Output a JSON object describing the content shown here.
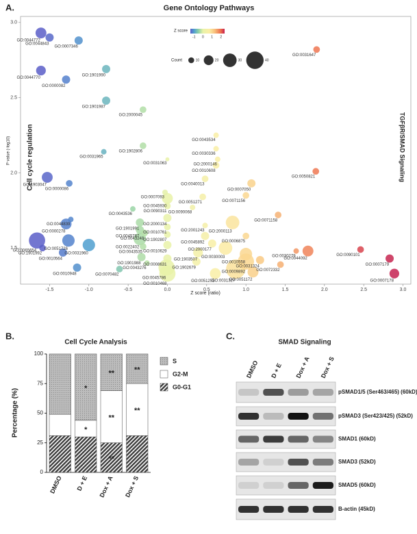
{
  "panels": {
    "a": "A.",
    "b": "B.",
    "c": "C."
  },
  "chart_data": [
    {
      "type": "bubble",
      "title": "Gene Ontology Pathways",
      "x_label": "Z score (ratio)",
      "y_label": "P value (-log10)",
      "annotations": [
        "Cell cycle regulation",
        "TGFβR/SMAD Signaling"
      ],
      "xlim": [
        -1.87,
        3.1
      ],
      "ylim": [
        1.26,
        3.04
      ],
      "xticks": [
        -1.5,
        -1.0,
        -0.5,
        0.0,
        0.5,
        1.0,
        1.5,
        2.0,
        2.5,
        3.0
      ],
      "yticks": [
        1.5,
        2.0,
        2.5,
        3.0
      ],
      "xtick_labels": [
        "-1.5",
        "-1.0",
        "-0.5",
        "0.0",
        "0.5",
        "1.0",
        "1.5",
        "2.0",
        "2.5",
        "3.0"
      ],
      "ytick_labels": [
        "1.5",
        "2.0",
        "2.5",
        "3.0"
      ],
      "colorscale": [
        [
          -1.6,
          "#5a5ec8"
        ],
        [
          -1,
          "#4f9fcf"
        ],
        [
          -0.5,
          "#8fd1a6"
        ],
        [
          0,
          "#e9f2a8"
        ],
        [
          0.7,
          "#fbeea6"
        ],
        [
          1.3,
          "#f8c07c"
        ],
        [
          2,
          "#ec6a4a"
        ],
        [
          2.9,
          "#c42050"
        ]
      ],
      "colorbar": {
        "label": "Z score",
        "ticks": [
          -1,
          0,
          1,
          2
        ],
        "lim": [
          -1.4,
          2.4
        ]
      },
      "size_legend": {
        "label": "Count",
        "values": [
          10,
          20,
          30,
          40
        ]
      },
      "labels": [
        "GO:0044772",
        "GO:0044843",
        "GO:0007346",
        "GO:1901990",
        "GO:0044770",
        "GO:0000082",
        "GO:1901987",
        "GO:2000045",
        "GO:0031647",
        "GO:0043534",
        "GO:1902806",
        "GO:0030336",
        "GO:2000146",
        "GO:0031965",
        "GO:0031063",
        "GO:0010608",
        "GO:1903047",
        "GO:0000086",
        "GO:0050821",
        "GO:0040013",
        "GO:0007050",
        "GO:0007093",
        "GO:0045930",
        "GO:0051271",
        "GO:0071156",
        "GO:0090311",
        "GO:0090068",
        "GO:0043536",
        "GO:0044839",
        "GO:0000278",
        "GO:0071158",
        "GO:2000134",
        "GO:1901991",
        "GO:2000113",
        "GO:2001243",
        "GO:0010761",
        "GO:0045787",
        "GO:0043248",
        "GO:0022402",
        "GO:1902807",
        "GO:0051726",
        "GO:0065654",
        "GO:1901992",
        "GO:0031960",
        "GO:0010629",
        "GO:0043535",
        "GO:0045892",
        "GO:2000177",
        "GO:0006875",
        "GO:0010564",
        "GO:0010948",
        "GO:1901988",
        "GO:0043276",
        "GO:1903507",
        "GO:0008631",
        "GO:0070482",
        "GO:0045786",
        "GO:1902679",
        "GO:0030003",
        "GO:0010558",
        "GO:0009892",
        "GO:0031327",
        "GO:0051253",
        "GO:0051172",
        "GO:0010468",
        "GO:0031324",
        "GO:0072332",
        "GO:0030279",
        "GO:0044092",
        "GO:0090101",
        "GO:0007179",
        "GO:0007178"
      ],
      "x": [
        -1.61,
        -1.5,
        -1.13,
        -0.78,
        -1.61,
        -1.29,
        -0.78,
        -0.31,
        1.9,
        0.62,
        -0.31,
        0.62,
        0.64,
        -0.81,
        0,
        0.62,
        -1.53,
        -1.25,
        1.89,
        0.48,
        1.07,
        -0.03,
        0,
        0.45,
        1,
        0,
        0.32,
        -0.44,
        -1.23,
        -1.29,
        1.41,
        0,
        -0.35,
        0.83,
        0.48,
        0,
        -0.35,
        -0.29,
        -0.35,
        0,
        -1.26,
        -1.66,
        -1.59,
        -1,
        0,
        -0.31,
        0.48,
        0.57,
        1,
        -1.33,
        -1.15,
        -0.33,
        -0.26,
        0.39,
        0,
        -0.61,
        -0.01,
        0.37,
        0.74,
        1,
        1,
        0.87,
        0.61,
        1.09,
        0,
        1.18,
        1.44,
        1.64,
        1.79,
        2.46,
        2.83,
        2.89
      ],
      "y": [
        2.93,
        2.9,
        2.88,
        2.69,
        2.68,
        2.62,
        2.48,
        2.42,
        2.82,
        2.25,
        2.18,
        2.16,
        2.09,
        2.14,
        2.09,
        2.05,
        1.97,
        1.93,
        2.01,
        1.96,
        1.93,
        1.87,
        1.83,
        1.84,
        1.85,
        1.78,
        1.77,
        1.76,
        1.69,
        1.66,
        1.72,
        1.7,
        1.67,
        1.67,
        1.65,
        1.64,
        1.62,
        1.6,
        1.56,
        1.59,
        1.55,
        1.55,
        1.5,
        1.52,
        1.52,
        1.51,
        1.58,
        1.53,
        1.58,
        1.47,
        1.37,
        1.44,
        1.4,
        1.47,
        1.43,
        1.36,
        1.37,
        1.41,
        1.5,
        1.46,
        1.41,
        1.36,
        1.33,
        1.34,
        1.33,
        1.42,
        1.39,
        1.48,
        1.48,
        1.49,
        1.43,
        1.33
      ],
      "sizes": [
        23,
        16,
        16,
        16,
        20,
        16,
        16,
        12,
        12,
        9,
        12,
        9,
        9,
        9,
        5,
        12,
        23,
        12,
        12,
        12,
        16,
        9,
        23,
        12,
        12,
        12,
        9,
        9,
        9,
        23,
        12,
        16,
        16,
        30,
        9,
        12,
        16,
        12,
        27,
        12,
        27,
        37,
        12,
        27,
        16,
        12,
        16,
        16,
        12,
        16,
        16,
        16,
        9,
        20,
        16,
        12,
        37,
        16,
        30,
        27,
        37,
        45,
        23,
        23,
        37,
        16,
        12,
        9,
        23,
        12,
        16,
        20
      ]
    },
    {
      "type": "stacked_bar",
      "title": "Cell Cycle Analysis",
      "y_label": "Percentage (%)",
      "categories": [
        "DMSO",
        "D + E",
        "Dox + A",
        "Dox + S"
      ],
      "ylim": [
        0,
        100
      ],
      "yticks": [
        0,
        25,
        50,
        75,
        100
      ],
      "series": [
        {
          "name": "G0-G1",
          "color": "#3c3c3c",
          "pattern": "hatch",
          "values": [
            31,
            30,
            25,
            31
          ],
          "annotations": [
            null,
            null,
            "**",
            null
          ]
        },
        {
          "name": "G2-M",
          "color": "#ffffff",
          "pattern": "solid",
          "values": [
            18,
            14,
            44,
            44
          ],
          "annotations": [
            null,
            "*",
            "**",
            "**"
          ]
        },
        {
          "name": "S",
          "color": "#a8a8a8",
          "pattern": "dots",
          "values": [
            51,
            56,
            31,
            25
          ],
          "annotations": [
            null,
            "*",
            "**",
            "**"
          ]
        }
      ]
    }
  ],
  "blot": {
    "title": "SMAD Signaling",
    "lanes": [
      "DMSO",
      "D + E",
      "Dox + A",
      "Dox + S"
    ],
    "rows": [
      {
        "label": "pSMAD1/5 (Ser463/465) (60kD)",
        "intensity": [
          0.15,
          0.7,
          0.35,
          0.3
        ]
      },
      {
        "label": "pSMAD3 (Ser423/425) (52kD)",
        "intensity": [
          0.85,
          0.2,
          1.0,
          0.55
        ]
      },
      {
        "label": "SMAD1 (60kD)",
        "intensity": [
          0.6,
          0.8,
          0.6,
          0.45
        ]
      },
      {
        "label": "SMAD3 (52kD)",
        "intensity": [
          0.3,
          0.1,
          0.7,
          0.5
        ]
      },
      {
        "label": "SMAD5 (60kD)",
        "intensity": [
          0.1,
          0.1,
          0.6,
          0.95
        ]
      },
      {
        "label": "B-actin (45kD)",
        "intensity": [
          0.85,
          0.85,
          0.85,
          0.85
        ]
      }
    ]
  }
}
